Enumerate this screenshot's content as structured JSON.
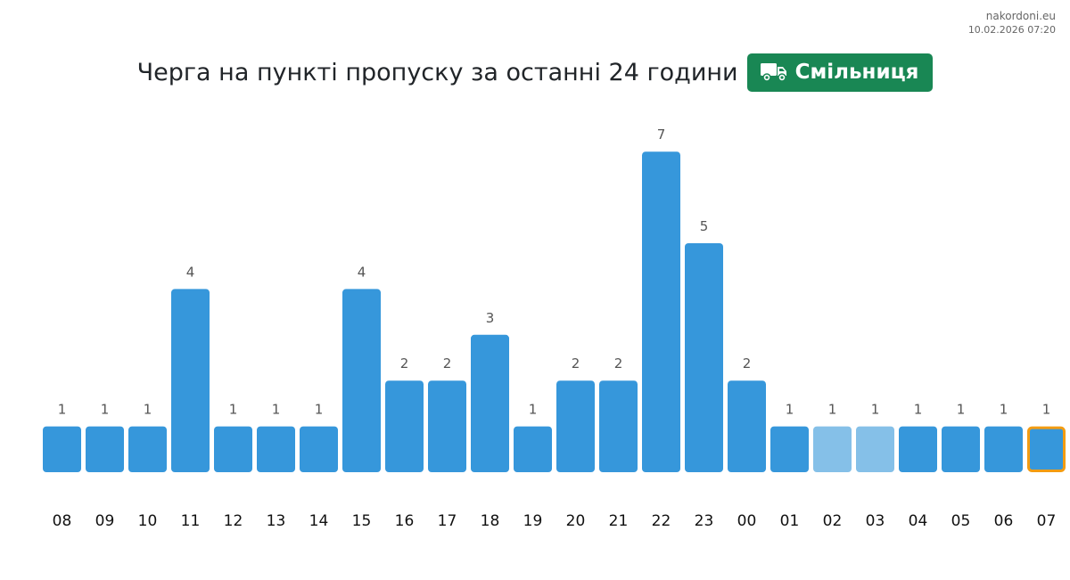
{
  "source": {
    "site": "nakordoni.eu",
    "timestamp": "10.02.2026 07:20"
  },
  "header": {
    "title": "Черга на пункті пропуску за останні 24 години",
    "badge_label": "Смільниця",
    "badge_icon": "truck-icon",
    "badge_color": "#198754"
  },
  "colors": {
    "bar": "#3697db",
    "bar_faded": "#85c0e8",
    "highlight_border": "#f39c12"
  },
  "chart_data": {
    "type": "bar",
    "title": "Черга на пункті пропуску за останні 24 години",
    "xlabel": "",
    "ylabel": "",
    "categories": [
      "08",
      "09",
      "10",
      "11",
      "12",
      "13",
      "14",
      "15",
      "16",
      "17",
      "18",
      "19",
      "20",
      "21",
      "22",
      "23",
      "00",
      "01",
      "02",
      "03",
      "04",
      "05",
      "06",
      "07"
    ],
    "values": [
      1,
      1,
      1,
      4,
      1,
      1,
      1,
      4,
      2,
      2,
      3,
      1,
      2,
      2,
      7,
      5,
      2,
      1,
      1,
      1,
      1,
      1,
      1,
      1
    ],
    "faded_categories": [
      "02",
      "03"
    ],
    "highlighted_category": "07",
    "ylim": [
      0,
      7
    ],
    "grid": false,
    "legend": "none",
    "data_labels": true
  }
}
